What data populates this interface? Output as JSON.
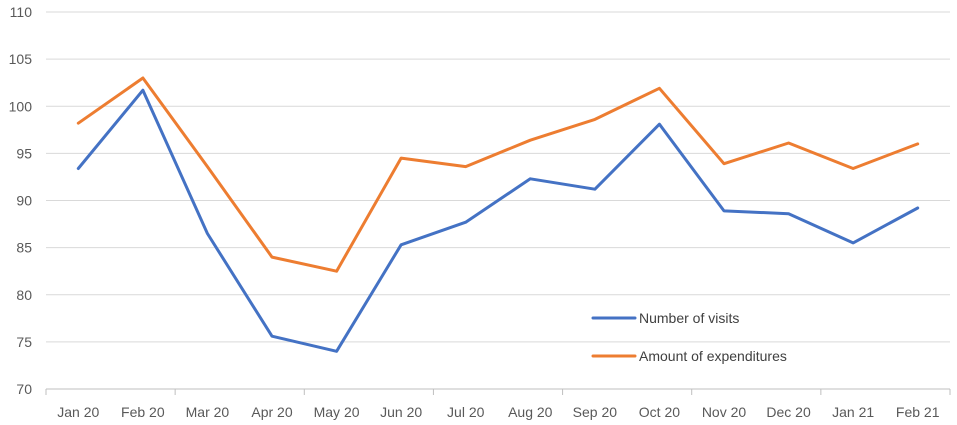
{
  "chart_data": {
    "type": "line",
    "categories": [
      "Jan 20",
      "Feb 20",
      "Mar 20",
      "Apr 20",
      "May 20",
      "Jun 20",
      "Jul 20",
      "Aug 20",
      "Sep 20",
      "Oct 20",
      "Nov 20",
      "Dec 20",
      "Jan 21",
      "Feb 21"
    ],
    "series": [
      {
        "name": "Number of visits",
        "color": "#4472c4",
        "values": [
          93.4,
          101.7,
          86.5,
          75.6,
          74.0,
          85.3,
          87.7,
          92.3,
          91.2,
          98.1,
          88.9,
          88.6,
          85.5,
          89.2
        ]
      },
      {
        "name": "Amount of expenditures",
        "color": "#ed7d31",
        "values": [
          98.2,
          103.0,
          93.6,
          84.0,
          82.5,
          94.5,
          93.6,
          96.4,
          98.6,
          101.9,
          93.9,
          96.1,
          93.4,
          96.0
        ]
      }
    ],
    "yticks": [
      70,
      75,
      80,
      85,
      90,
      95,
      100,
      105,
      110
    ],
    "ylim": [
      70,
      110
    ],
    "grid": true,
    "legend_position": "inside-bottom-right",
    "title": "",
    "xlabel": "",
    "ylabel": ""
  }
}
